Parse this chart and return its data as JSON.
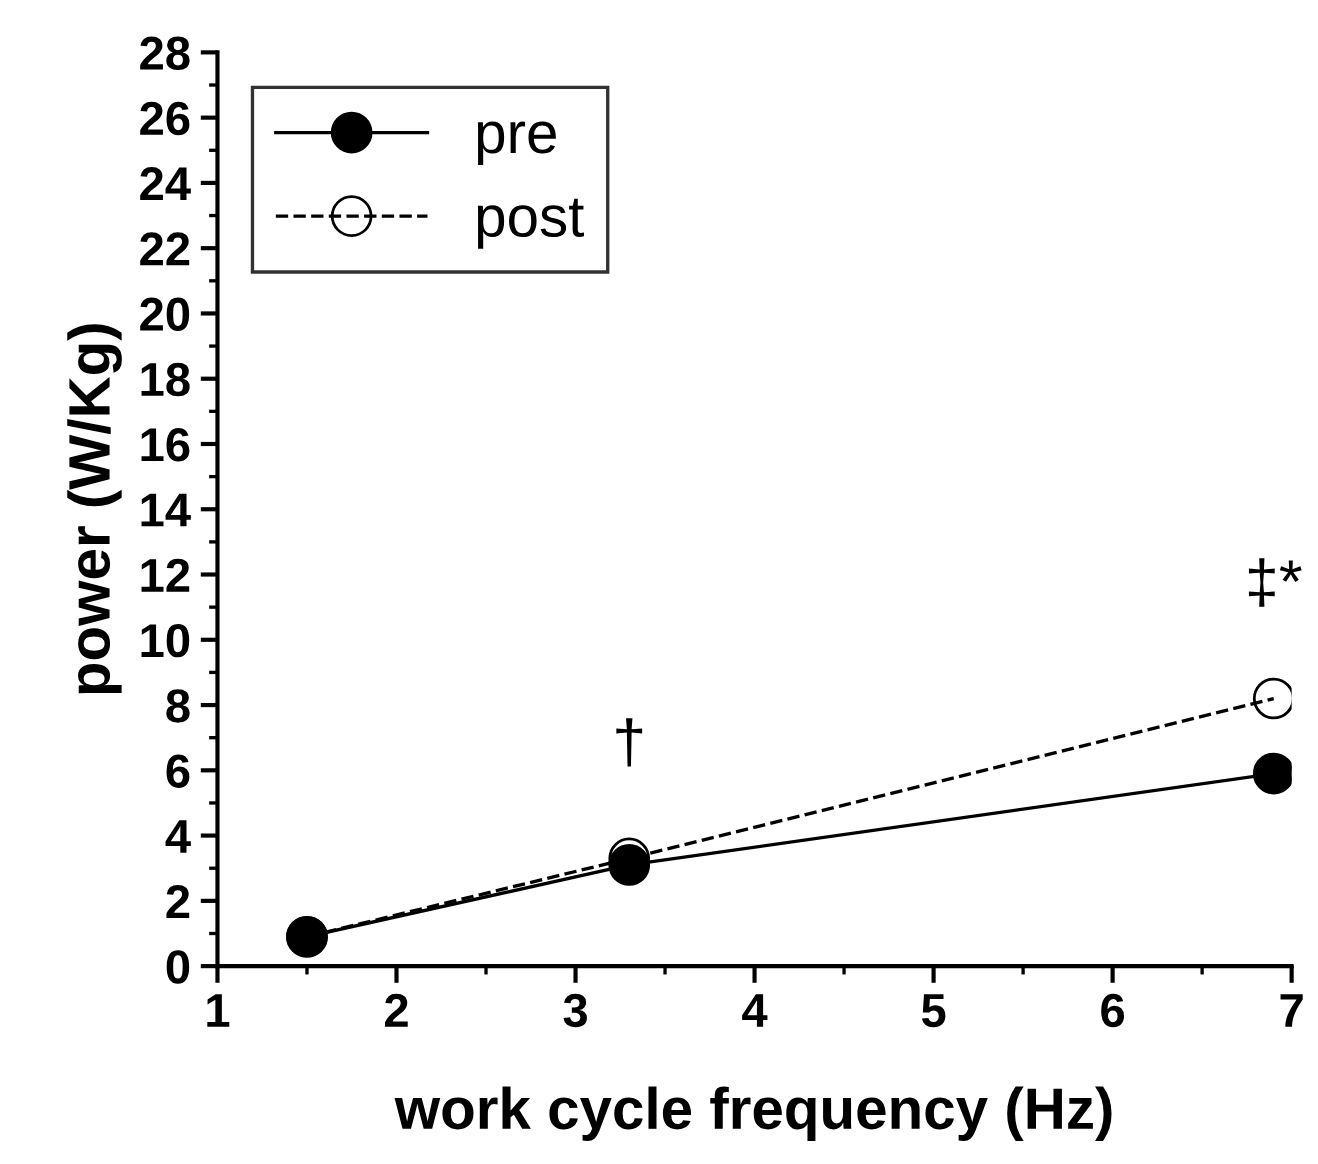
{
  "chart_data": {
    "type": "line",
    "xlabel": "work cycle frequency (Hz)",
    "ylabel": "power (W/Kg)",
    "xlim": [
      1,
      7
    ],
    "xticks": [
      1,
      2,
      3,
      4,
      5,
      6,
      7
    ],
    "ylim": [
      0,
      28
    ],
    "yticks": [
      0,
      2,
      4,
      6,
      8,
      10,
      12,
      14,
      16,
      18,
      20,
      22,
      24,
      26,
      28
    ],
    "x": [
      1.5,
      3.3,
      6.9
    ],
    "series": [
      {
        "name": "pre",
        "color": "#000000",
        "values": [
          0.9,
          3.1,
          5.9
        ],
        "marker": "circle",
        "line_style": "solid"
      },
      {
        "name": "post",
        "color": "#000000",
        "values": [
          0.9,
          3.3,
          8.2
        ],
        "marker": "circle",
        "line_style": "dashed"
      }
    ],
    "annotations": [
      "†",
      "‡*"
    ],
    "legend": "top left",
    "grid": false
  }
}
